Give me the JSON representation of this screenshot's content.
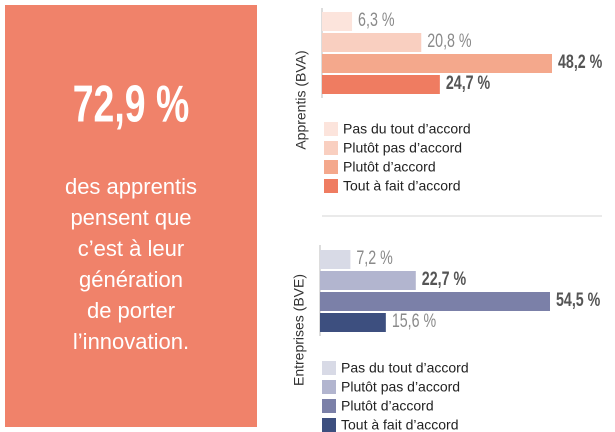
{
  "callout": {
    "figure": "72,9 %",
    "text_lines": [
      "des apprentis",
      "pensent que",
      "c’est à leur",
      "génération",
      "de porter",
      "l’innovation."
    ]
  },
  "chart_data": [
    {
      "type": "hbar",
      "axis_label": "Apprentis (BVA)",
      "categories": [
        "Pas du tout d’accord",
        "Plutôt pas d’accord",
        "Plutôt d’accord",
        "Tout à fait d’accord"
      ],
      "values": [
        6.3,
        20.8,
        48.2,
        24.7
      ],
      "value_labels": [
        "6,3 %",
        "20,8 %",
        "48,2 %",
        "24,7 %"
      ],
      "value_label_bold": [
        false,
        false,
        true,
        true
      ],
      "colors": [
        "#fce4dc",
        "#f9cfc0",
        "#f4a88c",
        "#ef7c61"
      ]
    },
    {
      "type": "hbar",
      "axis_label": "Entreprises (BVE)",
      "categories": [
        "Pas du tout d’accord",
        "Plutôt pas d’accord",
        "Plutôt d’accord",
        "Tout à fait d’accord"
      ],
      "values": [
        7.2,
        22.7,
        54.5,
        15.6
      ],
      "value_labels": [
        "7,2 %",
        "22,7 %",
        "54,5 %",
        "15,6 %"
      ],
      "value_label_bold": [
        false,
        true,
        true,
        false
      ],
      "colors": [
        "#d8dae6",
        "#b2b5cf",
        "#7b80a8",
        "#3d4f7f"
      ]
    }
  ]
}
